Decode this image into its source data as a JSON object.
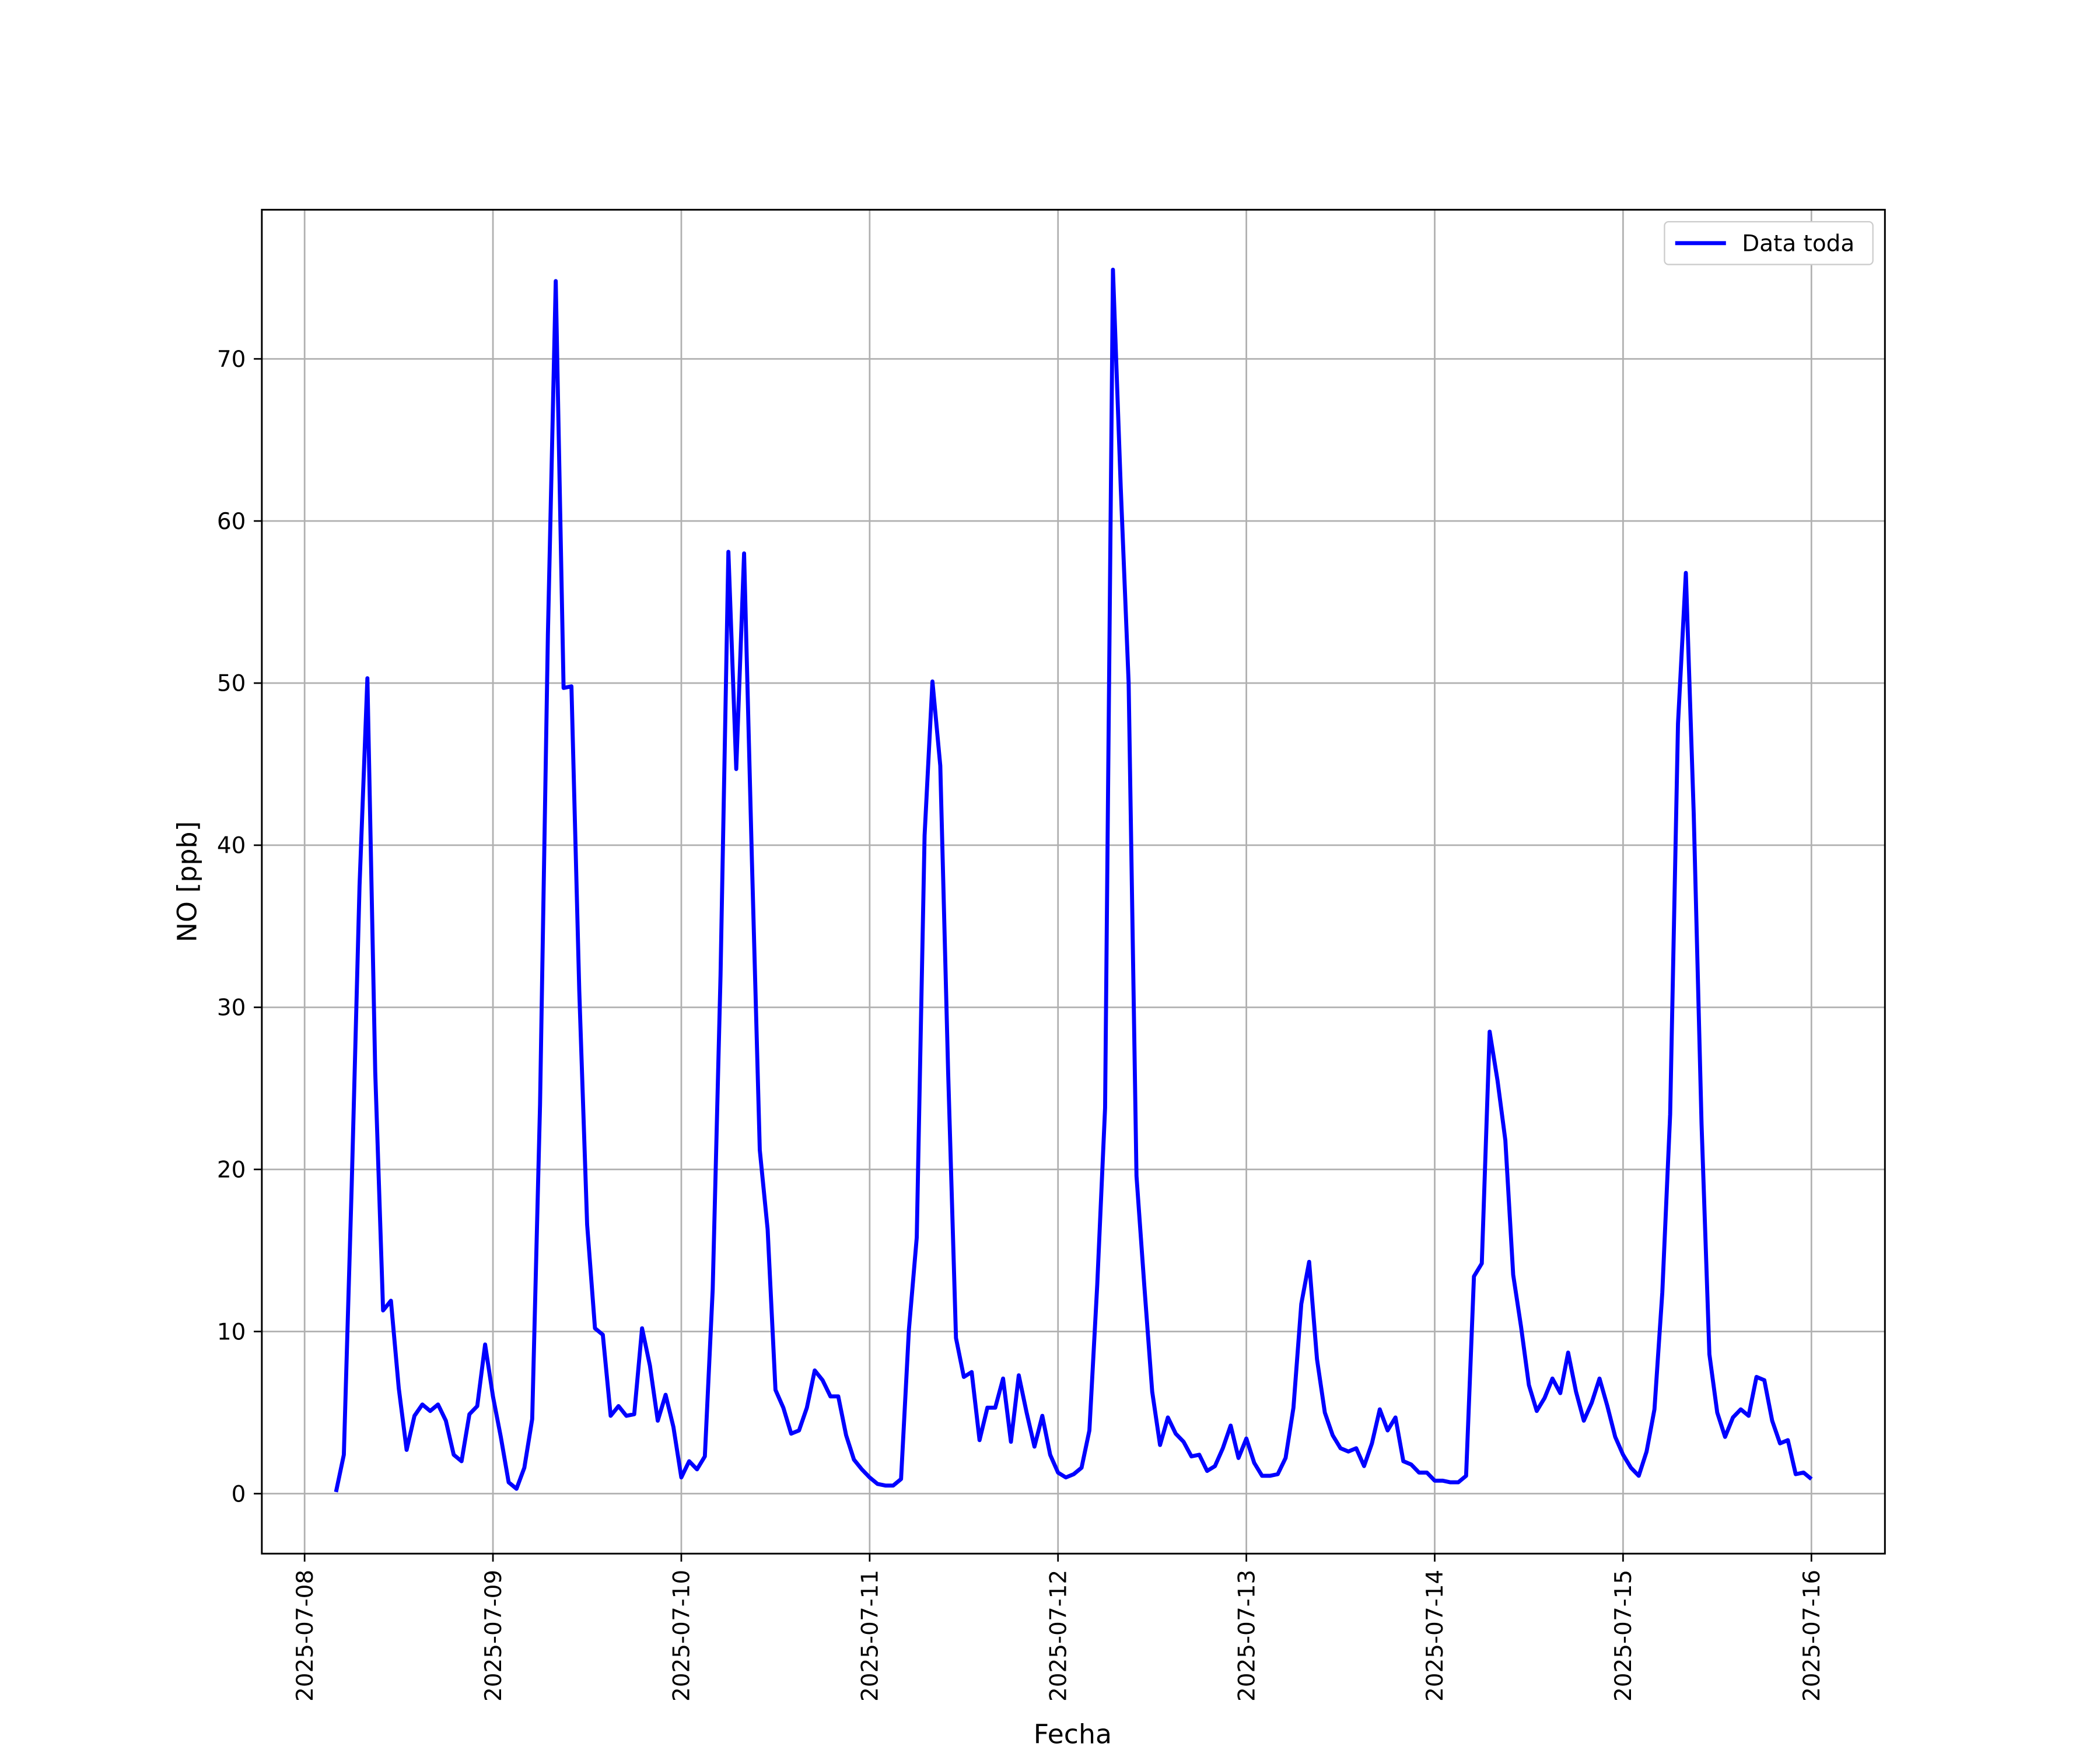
{
  "chart_data": {
    "type": "line",
    "xlabel": "Fecha",
    "ylabel": "NO [ppb]",
    "x": [
      "2025-07-08T04:00",
      "2025-07-08T05:00",
      "2025-07-08T06:00",
      "2025-07-08T07:00",
      "2025-07-08T08:00",
      "2025-07-08T09:00",
      "2025-07-08T10:00",
      "2025-07-08T11:00",
      "2025-07-08T12:00",
      "2025-07-08T13:00",
      "2025-07-08T14:00",
      "2025-07-08T15:00",
      "2025-07-08T16:00",
      "2025-07-08T17:00",
      "2025-07-08T18:00",
      "2025-07-08T19:00",
      "2025-07-08T20:00",
      "2025-07-08T21:00",
      "2025-07-08T22:00",
      "2025-07-08T23:00",
      "2025-07-09T00:00",
      "2025-07-09T01:00",
      "2025-07-09T02:00",
      "2025-07-09T03:00",
      "2025-07-09T04:00",
      "2025-07-09T05:00",
      "2025-07-09T06:00",
      "2025-07-09T07:00",
      "2025-07-09T08:00",
      "2025-07-09T09:00",
      "2025-07-09T10:00",
      "2025-07-09T11:00",
      "2025-07-09T12:00",
      "2025-07-09T13:00",
      "2025-07-09T14:00",
      "2025-07-09T15:00",
      "2025-07-09T16:00",
      "2025-07-09T17:00",
      "2025-07-09T18:00",
      "2025-07-09T19:00",
      "2025-07-09T20:00",
      "2025-07-09T21:00",
      "2025-07-09T22:00",
      "2025-07-09T23:00",
      "2025-07-10T00:00",
      "2025-07-10T01:00",
      "2025-07-10T02:00",
      "2025-07-10T03:00",
      "2025-07-10T04:00",
      "2025-07-10T05:00",
      "2025-07-10T06:00",
      "2025-07-10T07:00",
      "2025-07-10T08:00",
      "2025-07-10T09:00",
      "2025-07-10T10:00",
      "2025-07-10T11:00",
      "2025-07-10T12:00",
      "2025-07-10T13:00",
      "2025-07-10T14:00",
      "2025-07-10T15:00",
      "2025-07-10T16:00",
      "2025-07-10T17:00",
      "2025-07-10T18:00",
      "2025-07-10T19:00",
      "2025-07-10T20:00",
      "2025-07-10T21:00",
      "2025-07-10T22:00",
      "2025-07-10T23:00",
      "2025-07-11T00:00",
      "2025-07-11T01:00",
      "2025-07-11T02:00",
      "2025-07-11T03:00",
      "2025-07-11T04:00",
      "2025-07-11T05:00",
      "2025-07-11T06:00",
      "2025-07-11T07:00",
      "2025-07-11T08:00",
      "2025-07-11T09:00",
      "2025-07-11T10:00",
      "2025-07-11T11:00",
      "2025-07-11T12:00",
      "2025-07-11T13:00",
      "2025-07-11T14:00",
      "2025-07-11T15:00",
      "2025-07-11T16:00",
      "2025-07-11T17:00",
      "2025-07-11T18:00",
      "2025-07-11T19:00",
      "2025-07-11T20:00",
      "2025-07-11T21:00",
      "2025-07-11T22:00",
      "2025-07-11T23:00",
      "2025-07-12T00:00",
      "2025-07-12T01:00",
      "2025-07-12T02:00",
      "2025-07-12T03:00",
      "2025-07-12T04:00",
      "2025-07-12T05:00",
      "2025-07-12T06:00",
      "2025-07-12T07:00",
      "2025-07-12T08:00",
      "2025-07-12T09:00",
      "2025-07-12T10:00",
      "2025-07-12T11:00",
      "2025-07-12T12:00",
      "2025-07-12T13:00",
      "2025-07-12T14:00",
      "2025-07-12T15:00",
      "2025-07-12T16:00",
      "2025-07-12T17:00",
      "2025-07-12T18:00",
      "2025-07-12T19:00",
      "2025-07-12T20:00",
      "2025-07-12T21:00",
      "2025-07-12T22:00",
      "2025-07-12T23:00",
      "2025-07-13T00:00",
      "2025-07-13T01:00",
      "2025-07-13T02:00",
      "2025-07-13T03:00",
      "2025-07-13T04:00",
      "2025-07-13T05:00",
      "2025-07-13T06:00",
      "2025-07-13T07:00",
      "2025-07-13T08:00",
      "2025-07-13T09:00",
      "2025-07-13T10:00",
      "2025-07-13T11:00",
      "2025-07-13T12:00",
      "2025-07-13T13:00",
      "2025-07-13T14:00",
      "2025-07-13T15:00",
      "2025-07-13T16:00",
      "2025-07-13T17:00",
      "2025-07-13T18:00",
      "2025-07-13T19:00",
      "2025-07-13T20:00",
      "2025-07-13T21:00",
      "2025-07-13T22:00",
      "2025-07-13T23:00",
      "2025-07-14T00:00",
      "2025-07-14T01:00",
      "2025-07-14T02:00",
      "2025-07-14T03:00",
      "2025-07-14T04:00",
      "2025-07-14T05:00",
      "2025-07-14T06:00",
      "2025-07-14T07:00",
      "2025-07-14T08:00",
      "2025-07-14T09:00",
      "2025-07-14T10:00",
      "2025-07-14T11:00",
      "2025-07-14T12:00",
      "2025-07-14T13:00",
      "2025-07-14T14:00",
      "2025-07-14T15:00",
      "2025-07-14T16:00",
      "2025-07-14T17:00",
      "2025-07-14T18:00",
      "2025-07-14T19:00",
      "2025-07-14T20:00",
      "2025-07-14T21:00",
      "2025-07-14T22:00",
      "2025-07-14T23:00",
      "2025-07-15T00:00",
      "2025-07-15T01:00",
      "2025-07-15T02:00",
      "2025-07-15T03:00",
      "2025-07-15T04:00",
      "2025-07-15T05:00",
      "2025-07-15T06:00",
      "2025-07-15T07:00",
      "2025-07-15T08:00",
      "2025-07-15T09:00",
      "2025-07-15T10:00",
      "2025-07-15T11:00",
      "2025-07-15T12:00",
      "2025-07-15T13:00",
      "2025-07-15T14:00",
      "2025-07-15T15:00",
      "2025-07-15T16:00",
      "2025-07-15T17:00",
      "2025-07-15T18:00",
      "2025-07-15T19:00",
      "2025-07-15T20:00",
      "2025-07-15T21:00",
      "2025-07-15T22:00",
      "2025-07-15T23:00",
      "2025-07-16T00:00"
    ],
    "series": [
      {
        "name": "Data toda",
        "color": "#0000ff",
        "values": [
          0.1,
          2.4,
          19,
          37.5,
          50.3,
          26,
          11.3,
          11.9,
          6.5,
          2.7,
          4.8,
          5.5,
          5.1,
          5.5,
          4.5,
          2.4,
          2.0,
          4.9,
          5.4,
          9.2,
          6.0,
          3.5,
          0.7,
          0.3,
          1.6,
          4.6,
          24,
          53,
          74.8,
          49.7,
          49.8,
          31,
          16.6,
          10.2,
          9.8,
          4.8,
          5.4,
          4.8,
          4.9,
          10.2,
          7.9,
          4.5,
          6.1,
          4.1,
          1.0,
          2.0,
          1.5,
          2.3,
          12.6,
          32,
          58.1,
          44.7,
          58.0,
          39,
          21.2,
          16.3,
          6.4,
          5.3,
          3.7,
          3.9,
          5.3,
          7.6,
          7.0,
          6.0,
          6.0,
          3.6,
          2.1,
          1.5,
          1.0,
          0.6,
          0.5,
          0.5,
          0.9,
          10.1,
          15.8,
          40.6,
          50.1,
          44.9,
          26,
          9.6,
          7.2,
          7.5,
          3.3,
          5.3,
          5.3,
          7.1,
          3.2,
          7.3,
          5.0,
          2.9,
          4.8,
          2.4,
          1.3,
          1.0,
          1.2,
          1.6,
          3.9,
          12.9,
          23.8,
          75.5,
          62,
          50,
          19.6,
          12.8,
          6.3,
          3.0,
          4.7,
          3.7,
          3.2,
          2.3,
          2.4,
          1.4,
          1.7,
          2.8,
          4.2,
          2.2,
          3.4,
          1.9,
          1.1,
          1.1,
          1.2,
          2.2,
          5.3,
          11.7,
          14.3,
          8.3,
          5.0,
          3.6,
          2.8,
          2.6,
          2.8,
          1.7,
          3.1,
          5.2,
          3.9,
          4.7,
          2.0,
          1.8,
          1.3,
          1.3,
          0.8,
          0.8,
          0.7,
          0.7,
          1.1,
          13.4,
          14.2,
          28.5,
          25.5,
          21.8,
          13.5,
          10.3,
          6.7,
          5.1,
          5.9,
          7.1,
          6.2,
          8.7,
          6.3,
          4.5,
          5.6,
          7.1,
          5.4,
          3.5,
          2.4,
          1.6,
          1.1,
          2.6,
          5.2,
          12.4,
          23.4,
          47.5,
          56.8,
          42,
          22.8,
          8.6,
          5.0,
          3.5,
          4.7,
          5.2,
          4.8,
          7.2,
          7.0,
          4.5,
          3.1,
          3.3,
          1.2,
          1.3,
          0.9
        ]
      }
    ],
    "xlim": [
      "2025-07-07T18:33",
      "2025-07-16T09:22"
    ],
    "xticks": [
      "2025-07-08",
      "2025-07-09",
      "2025-07-10",
      "2025-07-11",
      "2025-07-12",
      "2025-07-13",
      "2025-07-14",
      "2025-07-15",
      "2025-07-16"
    ],
    "ylim": [
      -3.7,
      79.2
    ],
    "yticks": [
      0,
      10,
      20,
      30,
      40,
      50,
      60,
      70
    ],
    "grid": true,
    "legend": "upper right"
  }
}
